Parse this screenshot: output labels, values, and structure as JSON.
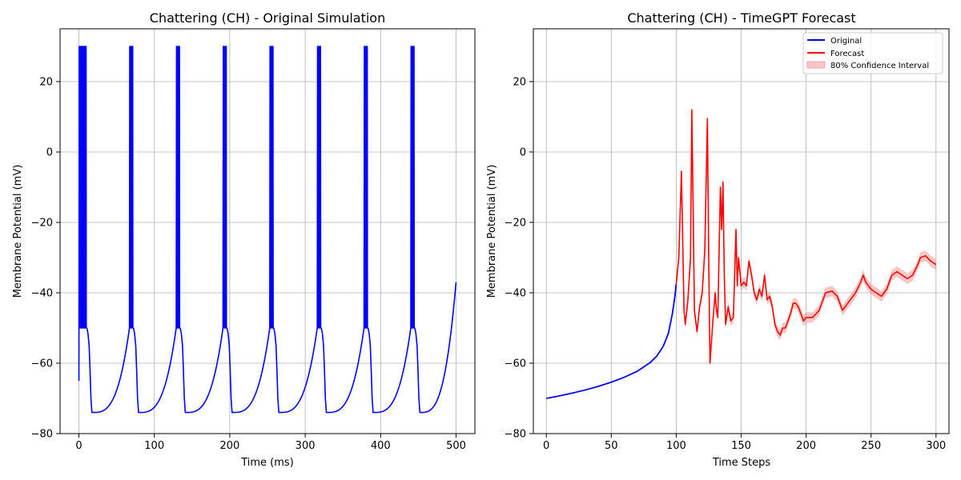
{
  "chart_data": [
    {
      "type": "line",
      "title": "Chattering (CH) - Original Simulation",
      "xlabel": "Time (ms)",
      "ylabel": "Membrane Potential (mV)",
      "xlim": [
        -25,
        525
      ],
      "ylim": [
        -80,
        35
      ],
      "xticks": [
        0,
        100,
        200,
        300,
        400,
        500
      ],
      "yticks": [
        -80,
        -60,
        -40,
        -20,
        0,
        20
      ],
      "grid": true,
      "legend": null,
      "series": [
        {
          "color": "#0000ff",
          "spike_peak": 30,
          "reset_value": -50,
          "burst_start_times": [
            0,
            67,
            129,
            191,
            253,
            316,
            378,
            440
          ],
          "spikes_per_burst": [
            8,
            4,
            4,
            4,
            4,
            4,
            4,
            4
          ],
          "after_hyperpolarization_min": -74,
          "end": [
            500,
            -37
          ]
        }
      ]
    },
    {
      "type": "line",
      "title": "Chattering (CH) - TimeGPT Forecast",
      "xlabel": "Time Steps",
      "ylabel": "Membrane Potential (mV)",
      "xlim": [
        -10,
        310
      ],
      "ylim": [
        -80,
        35
      ],
      "xticks": [
        0,
        50,
        100,
        150,
        200,
        250,
        300
      ],
      "yticks": [
        -80,
        -60,
        -40,
        -20,
        0,
        20
      ],
      "grid": true,
      "legend": "top-right",
      "series": [
        {
          "name": "Original",
          "color": "#0000ff",
          "points": [
            [
              0,
              -70
            ],
            [
              10,
              -69.3
            ],
            [
              20,
              -68.5
            ],
            [
              30,
              -67.6
            ],
            [
              40,
              -66.6
            ],
            [
              50,
              -65.4
            ],
            [
              60,
              -64.0
            ],
            [
              70,
              -62.3
            ],
            [
              80,
              -59.8
            ],
            [
              85,
              -58
            ],
            [
              90,
              -55.2
            ],
            [
              94,
              -51.5
            ],
            [
              97,
              -46
            ],
            [
              99,
              -41
            ],
            [
              100,
              -37.5
            ]
          ]
        },
        {
          "name": "Forecast",
          "color": "#ff0000",
          "points": [
            [
              100,
              -37.5
            ],
            [
              102,
              -30
            ],
            [
              104,
              -5.5
            ],
            [
              106,
              -45
            ],
            [
              107,
              -49
            ],
            [
              109,
              -42
            ],
            [
              111,
              -30
            ],
            [
              112,
              12
            ],
            [
              113,
              -15
            ],
            [
              114,
              -45
            ],
            [
              116,
              -51
            ],
            [
              118,
              -44
            ],
            [
              120,
              -40
            ],
            [
              122,
              -28
            ],
            [
              124,
              9.5
            ],
            [
              125,
              -30
            ],
            [
              126,
              -60
            ],
            [
              128,
              -49
            ],
            [
              130,
              -40
            ],
            [
              131,
              -45
            ],
            [
              132,
              -47
            ],
            [
              134,
              -10
            ],
            [
              135,
              -22
            ],
            [
              136,
              -8.5
            ],
            [
              137,
              -35
            ],
            [
              138,
              -49
            ],
            [
              140,
              -44
            ],
            [
              142,
              -48
            ],
            [
              144,
              -47
            ],
            [
              146,
              -22
            ],
            [
              147,
              -38
            ],
            [
              148,
              -30
            ],
            [
              150,
              -38
            ],
            [
              152,
              -37
            ],
            [
              154,
              -38
            ],
            [
              156,
              -31
            ],
            [
              158,
              -35
            ],
            [
              160,
              -40
            ],
            [
              162,
              -42
            ],
            [
              164,
              -39
            ],
            [
              166,
              -41
            ],
            [
              168,
              -35
            ],
            [
              170,
              -42
            ],
            [
              172,
              -41
            ],
            [
              174,
              -44
            ],
            [
              176,
              -49
            ],
            [
              178,
              -51
            ],
            [
              180,
              -52
            ],
            [
              182,
              -50
            ],
            [
              184,
              -50
            ],
            [
              186,
              -48
            ],
            [
              188,
              -46
            ],
            [
              190,
              -43
            ],
            [
              192,
              -43
            ],
            [
              194,
              -44
            ],
            [
              196,
              -46
            ],
            [
              198,
              -48
            ],
            [
              200,
              -47
            ],
            [
              205,
              -47
            ],
            [
              210,
              -45
            ],
            [
              215,
              -40
            ],
            [
              220,
              -39.5
            ],
            [
              224,
              -41
            ],
            [
              228,
              -45
            ],
            [
              230,
              -44
            ],
            [
              234,
              -42
            ],
            [
              238,
              -40
            ],
            [
              242,
              -37
            ],
            [
              244,
              -35
            ],
            [
              246,
              -37
            ],
            [
              250,
              -39
            ],
            [
              254,
              -40
            ],
            [
              258,
              -41
            ],
            [
              262,
              -39
            ],
            [
              266,
              -35
            ],
            [
              270,
              -34
            ],
            [
              274,
              -35
            ],
            [
              278,
              -36
            ],
            [
              282,
              -35
            ],
            [
              286,
              -32
            ],
            [
              288,
              -30
            ],
            [
              292,
              -29.5
            ],
            [
              296,
              -31
            ],
            [
              300,
              -32
            ]
          ],
          "ci_halfwidth": 1.5
        },
        {
          "name": "80% Confidence Interval",
          "color": "#f08080"
        }
      ]
    }
  ]
}
